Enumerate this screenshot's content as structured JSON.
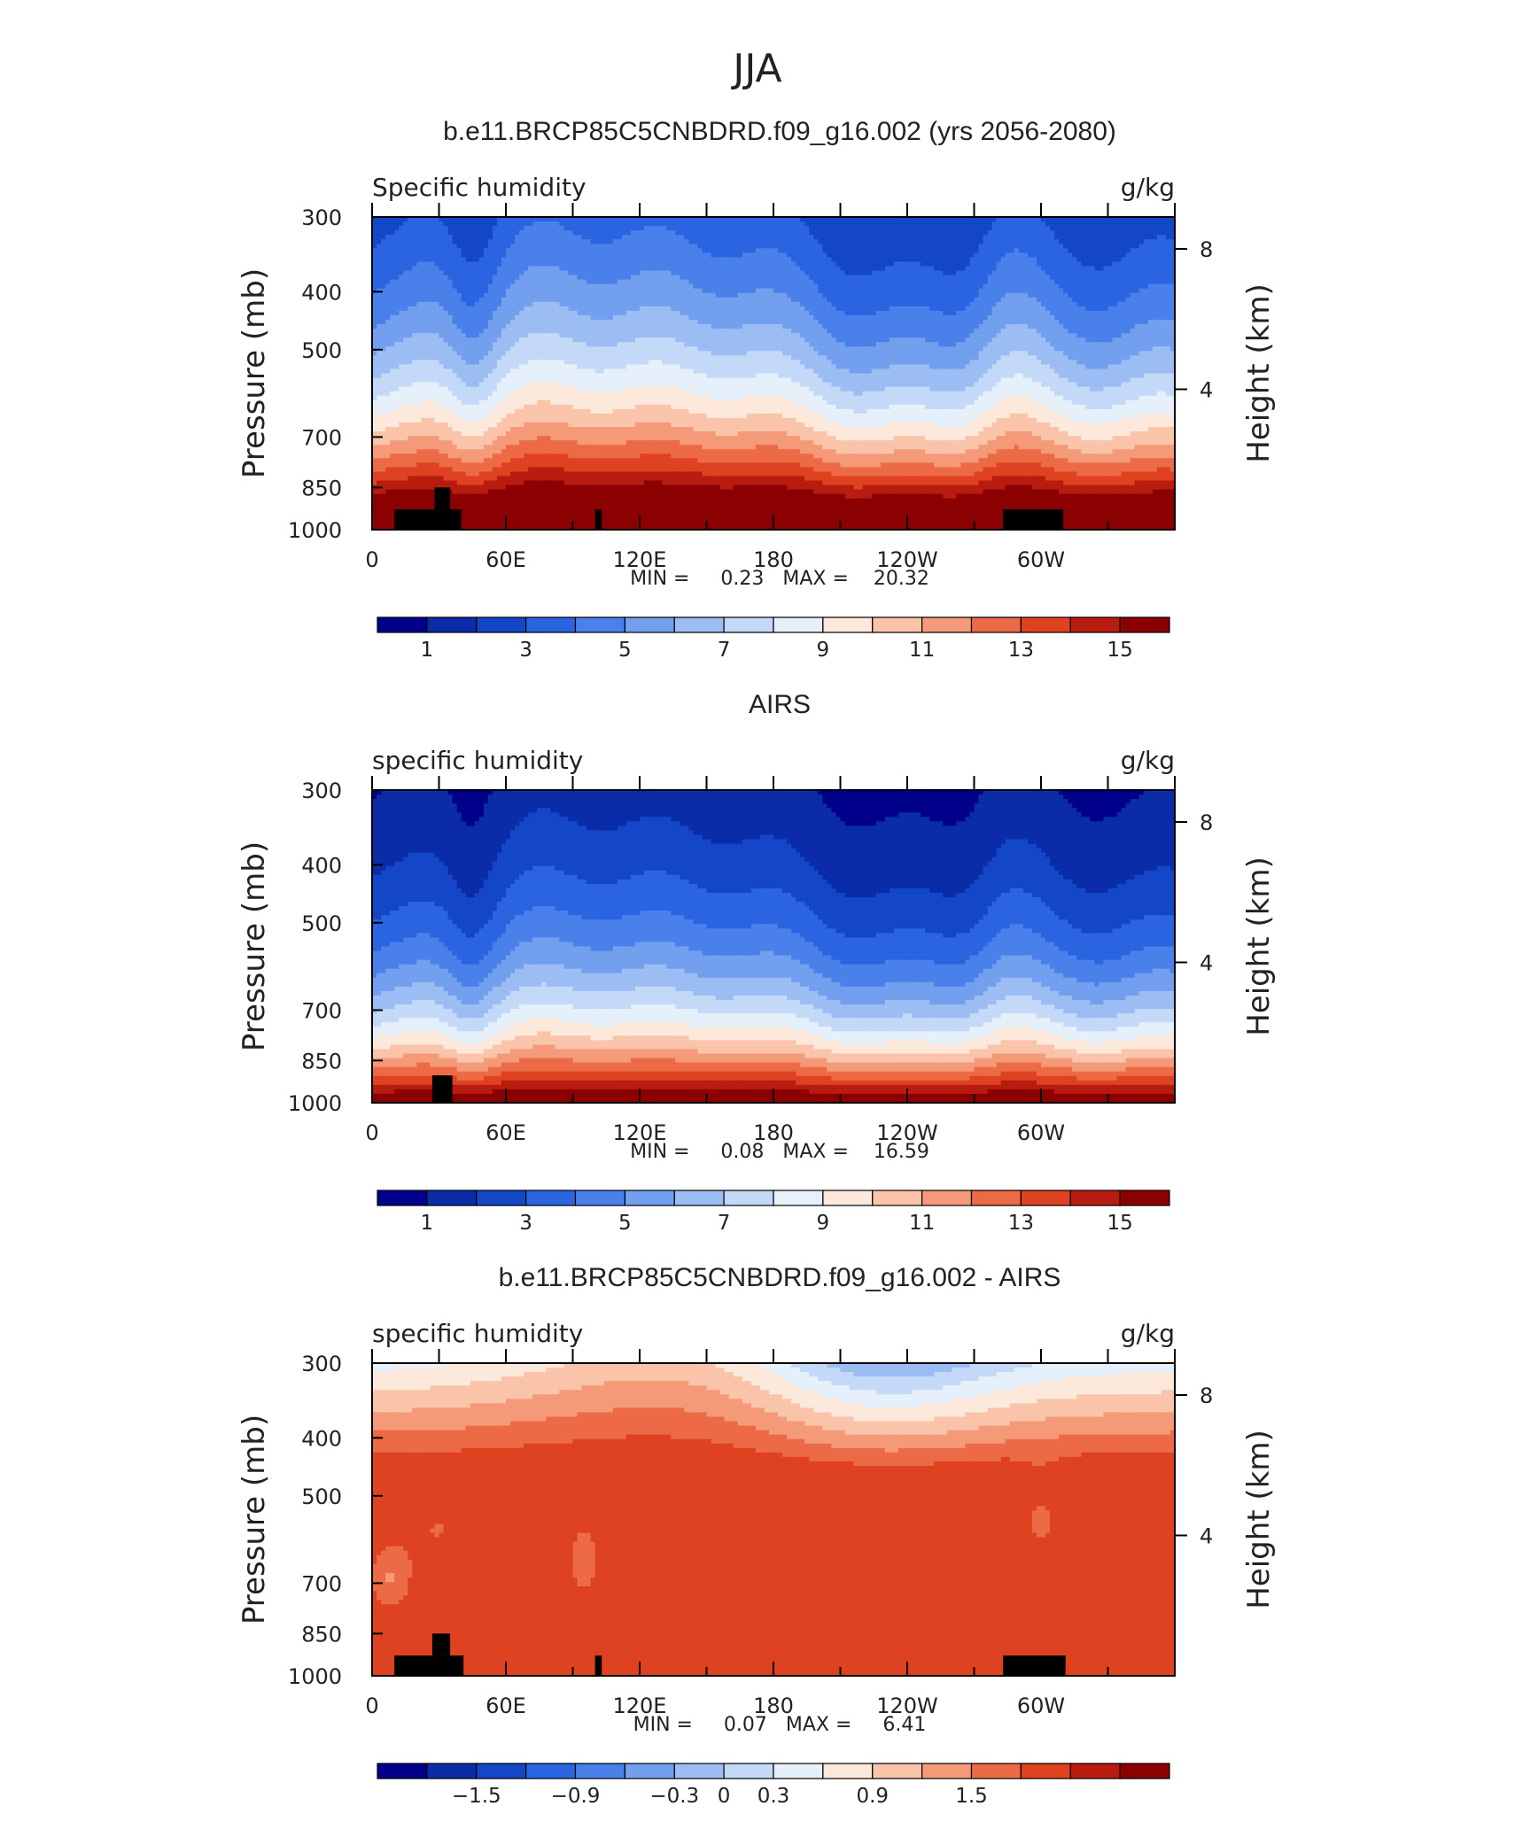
{
  "figure": {
    "title": "JJA"
  },
  "chart_data": [
    {
      "type": "heatmap",
      "title": "b.e11.BRCP85C5CNBDRD.f09_g16.002 (yrs 2056-2080)",
      "left_label": "Specific humidity",
      "right_label": "g/kg",
      "ylabel": "Pressure (mb)",
      "ylabel_right": "Height (km)",
      "yticks": [
        "300",
        "400",
        "500",
        "700",
        "850",
        "1000"
      ],
      "yticks_right": [
        "8",
        "4"
      ],
      "xticks": [
        "0",
        "60E",
        "120E",
        "180",
        "120W",
        "60W"
      ],
      "xlim": [
        0,
        360
      ],
      "ylim": [
        1000,
        300
      ],
      "stats": "MIN =     0.23   MAX =    20.32",
      "min": 0.23,
      "max": 20.32,
      "colorbar": {
        "labels": [
          "1",
          "3",
          "5",
          "7",
          "9",
          "11",
          "13",
          "15"
        ],
        "levels": [
          1,
          2,
          3,
          4,
          5,
          6,
          7,
          8,
          9,
          10,
          11,
          12,
          13,
          14,
          15
        ]
      },
      "colors": [
        "#00008b",
        "#0a2ca8",
        "#1446c8",
        "#2a64e0",
        "#4a80ea",
        "#739fef",
        "#9bbdf3",
        "#c3d9f7",
        "#e6f0fb",
        "#fde8dc",
        "#f9c4aa",
        "#f49a78",
        "#ec6a46",
        "#de4220",
        "#b81c0e",
        "#8b0000"
      ]
    },
    {
      "type": "heatmap",
      "title": "AIRS",
      "left_label": "specific humidity",
      "right_label": "g/kg",
      "ylabel": "Pressure (mb)",
      "ylabel_right": "Height (km)",
      "yticks": [
        "300",
        "400",
        "500",
        "700",
        "850",
        "1000"
      ],
      "yticks_right": [
        "8",
        "4"
      ],
      "xticks": [
        "0",
        "60E",
        "120E",
        "180",
        "120W",
        "60W"
      ],
      "xlim": [
        0,
        360
      ],
      "ylim": [
        1000,
        300
      ],
      "stats": "MIN =     0.08   MAX =    16.59",
      "min": 0.08,
      "max": 16.59,
      "colorbar": {
        "labels": [
          "1",
          "3",
          "5",
          "7",
          "9",
          "11",
          "13",
          "15"
        ],
        "levels": [
          1,
          2,
          3,
          4,
          5,
          6,
          7,
          8,
          9,
          10,
          11,
          12,
          13,
          14,
          15
        ]
      },
      "colors": [
        "#00008b",
        "#0a2ca8",
        "#1446c8",
        "#2a64e0",
        "#4a80ea",
        "#739fef",
        "#9bbdf3",
        "#c3d9f7",
        "#e6f0fb",
        "#fde8dc",
        "#f9c4aa",
        "#f49a78",
        "#ec6a46",
        "#de4220",
        "#b81c0e",
        "#8b0000"
      ]
    },
    {
      "type": "heatmap",
      "title": "b.e11.BRCP85C5CNBDRD.f09_g16.002 - AIRS",
      "left_label": "specific humidity",
      "right_label": "g/kg",
      "ylabel": "Pressure (mb)",
      "ylabel_right": "Height (km)",
      "yticks": [
        "300",
        "400",
        "500",
        "700",
        "850",
        "1000"
      ],
      "yticks_right": [
        "8",
        "4"
      ],
      "xticks": [
        "0",
        "60E",
        "120E",
        "180",
        "120W",
        "60W"
      ],
      "xlim": [
        0,
        360
      ],
      "ylim": [
        1000,
        300
      ],
      "stats": "MIN =     0.07   MAX =     6.41",
      "min": 0.07,
      "max": 6.41,
      "colorbar": {
        "labels": [
          "−1.5",
          "−0.9",
          "−0.3",
          "0",
          "0.3",
          "0.9",
          "1.5"
        ],
        "levels": [
          -1.8,
          -1.5,
          -1.2,
          -0.9,
          -0.6,
          -0.3,
          0,
          0.3,
          0.6,
          0.9,
          1.2,
          1.5,
          1.8
        ]
      },
      "colors": [
        "#00008b",
        "#0a2ca8",
        "#1446c8",
        "#2a64e0",
        "#4a80ea",
        "#739fef",
        "#9bbdf3",
        "#c3d9f7",
        "#e6f0fb",
        "#fde8dc",
        "#f9c4aa",
        "#f49a78",
        "#ec6a46",
        "#de4220",
        "#b81c0e",
        "#8b0000"
      ]
    }
  ]
}
